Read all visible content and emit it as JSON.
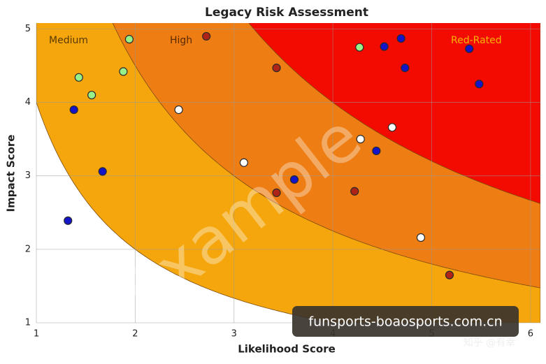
{
  "chart_data": {
    "type": "scatter",
    "title": "Legacy Risk Assessment",
    "x_label": "Likelihood Score",
    "y_label": "Impact Score",
    "xlim": [
      1,
      6.1
    ],
    "ylim": [
      1,
      5.08
    ],
    "xticks": [
      1,
      2,
      3,
      4,
      5,
      6
    ],
    "yticks": [
      1,
      2,
      3,
      4,
      5
    ],
    "grid": true,
    "zones": [
      {
        "label": "Medium",
        "from": 4,
        "color": "#f4a60c",
        "label_color": "#5a3a00"
      },
      {
        "label": "High",
        "from": 9,
        "color": "#ee7d13",
        "label_color": "#5a2a00"
      },
      {
        "label": "Red-Rated",
        "from": 16,
        "color": "#f30a00",
        "label_color": "#f6b400"
      }
    ],
    "series": [
      {
        "color": "#98f08a",
        "x": [
          1.94,
          1.43,
          1.56,
          1.88,
          4.27
        ],
        "values": [
          4.86,
          4.34,
          4.1,
          4.42,
          4.75
        ]
      },
      {
        "color": "#ffffff",
        "x": [
          2.44,
          3.1,
          4.28,
          4.6,
          4.89
        ],
        "values": [
          3.9,
          3.18,
          3.5,
          3.66,
          2.16
        ]
      },
      {
        "color": "#1414c8",
        "x": [
          1.38,
          1.67,
          1.32,
          3.61,
          4.44,
          4.52,
          4.69,
          4.73,
          5.38,
          5.48
        ],
        "values": [
          3.9,
          3.06,
          2.39,
          2.95,
          3.34,
          4.76,
          4.87,
          4.47,
          4.73,
          4.25
        ]
      },
      {
        "color": "#b02418",
        "x": [
          2.72,
          3.43,
          3.43,
          4.22,
          5.18
        ],
        "values": [
          4.9,
          4.47,
          2.77,
          2.79,
          1.65
        ]
      }
    ],
    "watermark": "Example",
    "banner": "funsports-boaosports.com.cn",
    "credit": "知乎 @有幸"
  }
}
